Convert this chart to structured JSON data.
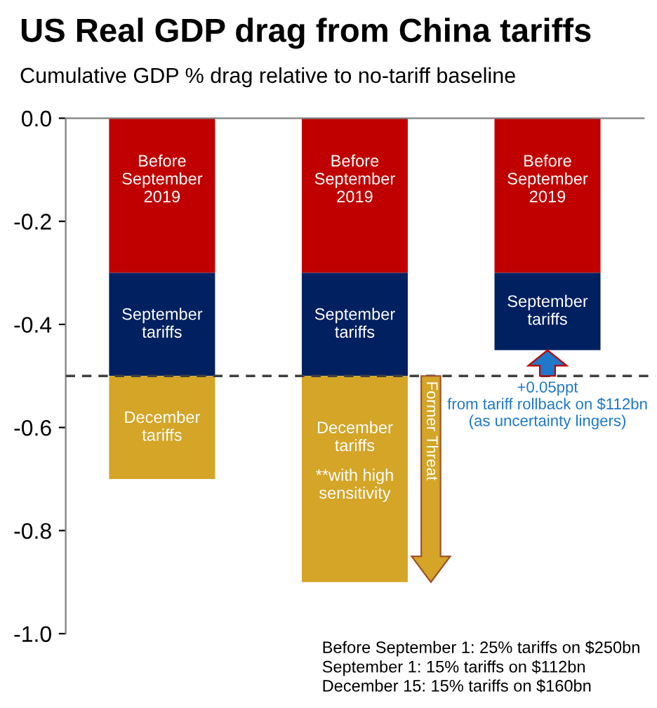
{
  "chart_data": {
    "type": "bar",
    "stacked": true,
    "title": "US Real GDP drag from China tariffs",
    "subtitle": "Cumulative GDP % drag relative to no-tariff baseline",
    "categories": [
      null,
      null,
      null
    ],
    "series": [
      {
        "name": "Before September 2019",
        "color": "#c00000",
        "values": [
          -0.3,
          -0.3,
          -0.3
        ]
      },
      {
        "name": "September tariffs",
        "color": "#002060",
        "values": [
          -0.2,
          -0.2,
          -0.15
        ]
      },
      {
        "name": "December tariffs",
        "color": "#d4a527",
        "values": [
          -0.2,
          -0.4,
          null
        ]
      }
    ],
    "ylim": [
      -1.0,
      0.0
    ],
    "yticks": [
      {
        "value": 0.0,
        "label": "0.0"
      },
      {
        "value": -0.2,
        "label": "-0.2"
      },
      {
        "value": -0.4,
        "label": "-0.4"
      },
      {
        "value": -0.6,
        "label": "-0.6"
      },
      {
        "value": -0.8,
        "label": "-0.8"
      },
      {
        "value": -1.0,
        "label": "-1.0"
      }
    ],
    "ref_lines": [
      {
        "axis": "y",
        "value": -0.5,
        "line_style": "dashed",
        "color": "#404040"
      }
    ],
    "annotations": [
      "**with high sensitivity",
      "Former Threat",
      "+0.05ppt\nfrom tariff rollback on $112bn\n(as uncertainty lingers)",
      "Before September 1: 25% tariffs on $250bn\nSeptember 1: 15% tariffs on $112bn\nDecember 15: 15% tariffs on $160bn"
    ],
    "grid": false,
    "legend": false
  }
}
